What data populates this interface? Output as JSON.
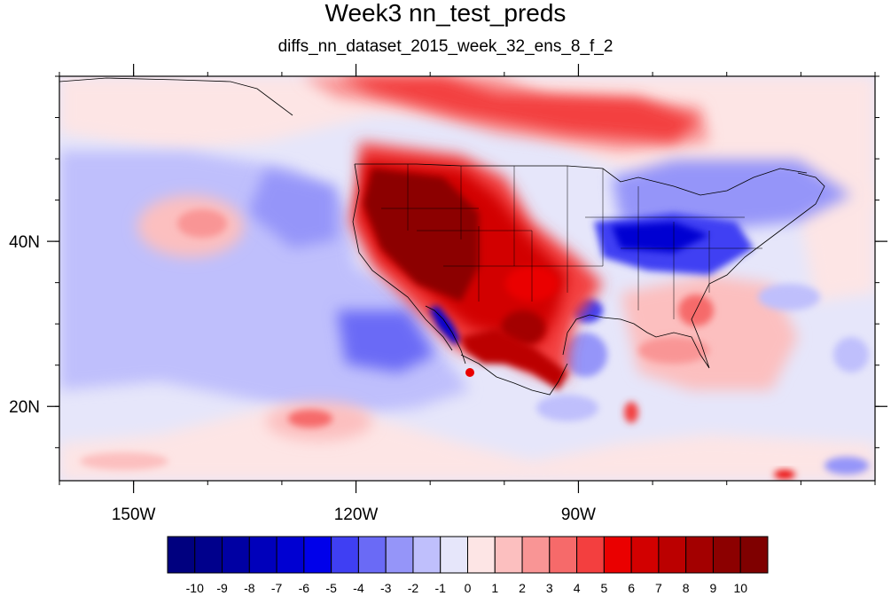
{
  "title": "Week3 nn_test_preds",
  "subtitle": "diffs_nn_dataset_2015_week_32_ens_8_f_2",
  "map": {
    "lon_range": [
      -160,
      -50
    ],
    "lat_range": [
      11,
      60
    ],
    "lon_ticks": [
      {
        "value": -150,
        "label": "150W"
      },
      {
        "value": -120,
        "label": "120W"
      },
      {
        "value": -90,
        "label": "90W"
      }
    ],
    "lat_ticks": [
      {
        "value": 40,
        "label": "40N"
      },
      {
        "value": 20,
        "label": "20N"
      }
    ]
  },
  "colorbar": {
    "labels": [
      "-10",
      "-9",
      "-8",
      "-7",
      "-6",
      "-5",
      "-4",
      "-3",
      "-2",
      "-1",
      "0",
      "1",
      "2",
      "3",
      "4",
      "5",
      "6",
      "7",
      "8",
      "9",
      "10"
    ],
    "colors": [
      "#00007f",
      "#00008c",
      "#0000a3",
      "#0000bb",
      "#0000d2",
      "#0000ea",
      "#3f3ff3",
      "#6a6af6",
      "#9595f9",
      "#bfbffc",
      "#e6e6fa",
      "#fde5e5",
      "#fcbfbf",
      "#f99595",
      "#f66a6a",
      "#f33f3f",
      "#ea0000",
      "#d20000",
      "#bb0000",
      "#a30000",
      "#8c0000",
      "#7f0000"
    ]
  }
}
